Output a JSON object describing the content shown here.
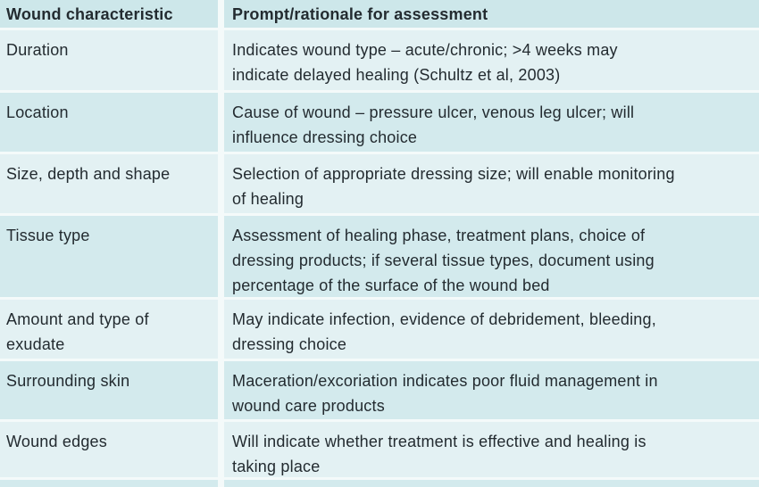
{
  "colors": {
    "header_bg": "#cde7ea",
    "row_dark_bg": "#d3eaed",
    "row_light_bg": "#e3f1f3",
    "gap": "#f4fafa",
    "text": "#232b30"
  },
  "chart_data": {
    "type": "table",
    "columns": [
      "Wound characteristic",
      "Prompt/rationale for assessment"
    ],
    "rows": [
      [
        "Duration",
        "Indicates wound type – acute/chronic; >4 weeks may indicate delayed healing (Schultz et al, 2003)"
      ],
      [
        "Location",
        "Cause of wound – pressure ulcer, venous leg ulcer; will influence dressing choice"
      ],
      [
        "Size, depth and shape",
        "Selection of appropriate dressing size; will enable monitoring of healing"
      ],
      [
        "Tissue type",
        "Assessment of healing phase, treatment plans, choice of dressing products; if several tissue types, document using percentage of the surface of the wound bed"
      ],
      [
        "Amount and type of exudate",
        "May indicate infection, evidence of debridement, bleeding, dressing choice"
      ],
      [
        "Surrounding skin",
        "Maceration/excoriation indicates poor fluid management in wound care products"
      ],
      [
        "Wound edges",
        "Will indicate whether treatment is effective and healing is taking place"
      ]
    ]
  },
  "render": {
    "rows": [
      {
        "characteristic_lines": [
          "Duration"
        ],
        "rationale_lines": [
          "Indicates wound type – acute/chronic; >4 weeks may",
          "indicate delayed healing (Schultz et al, 2003)"
        ]
      },
      {
        "characteristic_lines": [
          "Location"
        ],
        "rationale_lines": [
          "Cause of wound – pressure ulcer, venous leg ulcer; will",
          "influence dressing choice"
        ]
      },
      {
        "characteristic_lines": [
          "Size, depth and shape"
        ],
        "rationale_lines": [
          "Selection of appropriate dressing size; will enable monitoring",
          "of healing"
        ]
      },
      {
        "characteristic_lines": [
          "Tissue type"
        ],
        "rationale_lines": [
          "Assessment of healing phase, treatment plans, choice of",
          "dressing products; if several tissue types, document using",
          "percentage of the surface of the wound bed"
        ]
      },
      {
        "characteristic_lines": [
          "Amount and type of",
          "exudate"
        ],
        "rationale_lines": [
          "May indicate infection, evidence of debridement, bleeding,",
          "dressing choice"
        ]
      },
      {
        "characteristic_lines": [
          "Surrounding skin"
        ],
        "rationale_lines": [
          "Maceration/excoriation indicates poor fluid management in",
          "wound care products"
        ]
      },
      {
        "characteristic_lines": [
          "Wound edges"
        ],
        "rationale_lines": [
          "Will indicate whether treatment is effective and healing is",
          "taking place"
        ]
      }
    ]
  }
}
